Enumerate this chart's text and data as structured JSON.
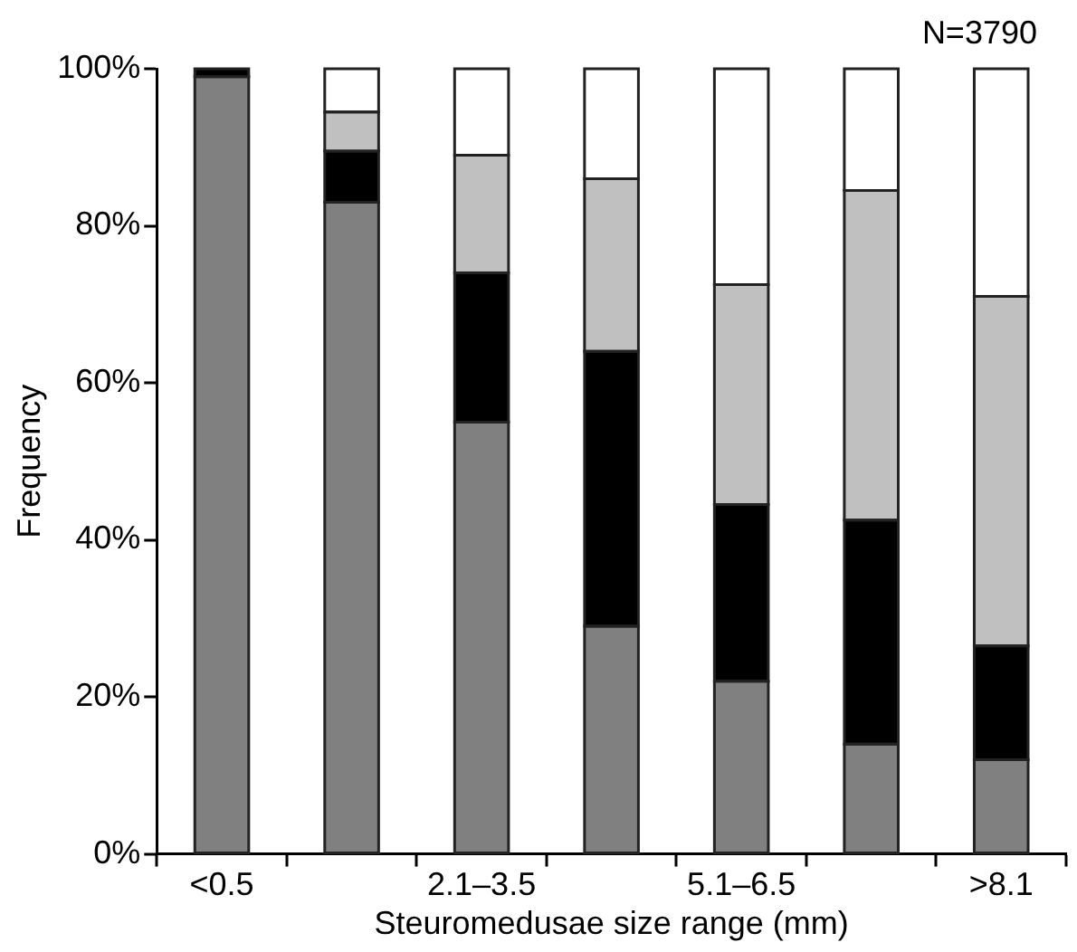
{
  "chart_data": {
    "type": "bar",
    "stacked": true,
    "xlabel": "Steuromedusae size range (mm)",
    "ylabel": "Frequency",
    "annotations": [
      "N=3790"
    ],
    "categories": [
      "<0.5",
      null,
      "2.1–3.5",
      null,
      "5.1–6.5",
      null,
      ">8.1"
    ],
    "series": [
      {
        "color": "#808080",
        "values": [
          99,
          83,
          55,
          29,
          22,
          14,
          12
        ]
      },
      {
        "color": "#000000",
        "values": [
          1,
          6.5,
          19,
          35,
          22.5,
          28.5,
          14.5
        ]
      },
      {
        "color": "#c0c0c0",
        "values": [
          0,
          5,
          15,
          22,
          28,
          42,
          44.5
        ]
      },
      {
        "color": "#ffffff",
        "values": [
          0,
          5.5,
          11,
          14,
          27.5,
          15.5,
          29
        ]
      }
    ],
    "ylim": [
      0,
      100
    ],
    "yticks": [
      {
        "value": 0,
        "label": "0%"
      },
      {
        "value": 20,
        "label": "20%"
      },
      {
        "value": 40,
        "label": "40%"
      },
      {
        "value": 60,
        "label": "60%"
      },
      {
        "value": 80,
        "label": "80%"
      },
      {
        "value": 100,
        "label": "100%"
      }
    ],
    "grid": false,
    "legend": false
  }
}
